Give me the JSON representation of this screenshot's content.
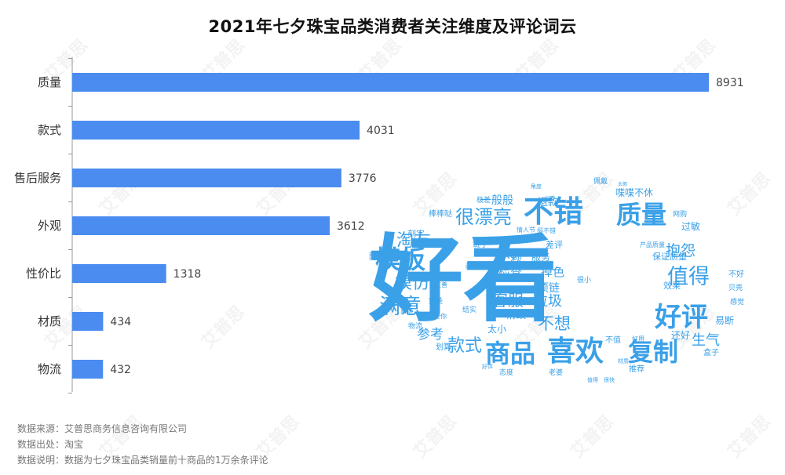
{
  "watermark_text": "艾普思",
  "chart_data": {
    "type": "bar",
    "orientation": "horizontal",
    "title": "2021年七夕珠宝品类消费者关注维度及评论词云",
    "categories": [
      "质量",
      "款式",
      "售后服务",
      "外观",
      "性价比",
      "材质",
      "物流"
    ],
    "values": [
      8931,
      4031,
      3776,
      3612,
      1318,
      434,
      432
    ],
    "xlim": [
      0,
      9500
    ],
    "bar_color": "#4a8cf0",
    "grid": false,
    "legend": "none"
  },
  "word_cloud": {
    "color": "#3aa0e8",
    "words": [
      {
        "text": "好看",
        "weight": 100
      },
      {
        "text": "不错",
        "weight": 45
      },
      {
        "text": "质量",
        "weight": 40
      },
      {
        "text": "喜欢",
        "weight": 42
      },
      {
        "text": "商品",
        "weight": 38
      },
      {
        "text": "复制",
        "weight": 36
      },
      {
        "text": "模板",
        "weight": 36
      },
      {
        "text": "好评",
        "weight": 38
      },
      {
        "text": "值得",
        "weight": 33
      },
      {
        "text": "满意",
        "weight": 32
      },
      {
        "text": "很漂亮",
        "weight": 28
      },
      {
        "text": "模仿",
        "weight": 26
      },
      {
        "text": "淘友",
        "weight": 26
      },
      {
        "text": "款式",
        "weight": 26
      },
      {
        "text": "不想",
        "weight": 24
      },
      {
        "text": "客服",
        "weight": 22
      },
      {
        "text": "抱怨",
        "weight": 22
      },
      {
        "text": "生气",
        "weight": 21
      },
      {
        "text": "参考",
        "weight": 20
      },
      {
        "text": "垃圾",
        "weight": 19
      },
      {
        "text": "不赖",
        "weight": 17
      },
      {
        "text": "检查",
        "weight": 17
      },
      {
        "text": "掉色",
        "weight": 17
      },
      {
        "text": "项链",
        "weight": 16
      },
      {
        "text": "精致",
        "weight": 15
      },
      {
        "text": "一般般",
        "weight": 16
      },
      {
        "text": "退款",
        "weight": 15
      },
      {
        "text": "服务",
        "weight": 14
      },
      {
        "text": "差评",
        "weight": 13
      },
      {
        "text": "太小",
        "weight": 13
      },
      {
        "text": "还好",
        "weight": 13
      },
      {
        "text": "易断",
        "weight": 13
      },
      {
        "text": "效果",
        "weight": 12
      },
      {
        "text": "喋喋不休",
        "weight": 12
      },
      {
        "text": "过敏",
        "weight": 12
      },
      {
        "text": "保证质量",
        "weight": 11
      },
      {
        "text": "降价",
        "weight": 11
      },
      {
        "text": "刻字",
        "weight": 11
      },
      {
        "text": "链子",
        "weight": 10
      },
      {
        "text": "棒棒哒",
        "weight": 10
      },
      {
        "text": "推荐",
        "weight": 10
      },
      {
        "text": "盒子",
        "weight": 10
      },
      {
        "text": "不值",
        "weight": 10
      },
      {
        "text": "划算",
        "weight": 10
      },
      {
        "text": "不好",
        "weight": 10
      },
      {
        "text": "结实",
        "weight": 9
      },
      {
        "text": "完美",
        "weight": 9
      },
      {
        "text": "老婆",
        "weight": 9
      },
      {
        "text": "态度",
        "weight": 9
      },
      {
        "text": "很小",
        "weight": 9
      },
      {
        "text": "物流",
        "weight": 9
      },
      {
        "text": "极差",
        "weight": 9
      },
      {
        "text": "佩戴",
        "weight": 9
      },
      {
        "text": "网购",
        "weight": 9
      },
      {
        "text": "情人节",
        "weight": 8
      },
      {
        "text": "产品质量",
        "weight": 8
      },
      {
        "text": "贝壳",
        "weight": 8
      },
      {
        "text": "感觉",
        "weight": 8
      },
      {
        "text": "好用",
        "weight": 8
      },
      {
        "text": "很快",
        "weight": 8
      },
      {
        "text": "值得",
        "weight": 8
      },
      {
        "text": "材质",
        "weight": 8
      },
      {
        "text": "迷你",
        "weight": 8
      },
      {
        "text": "友善",
        "weight": 8
      },
      {
        "text": "商家",
        "weight": 8
      },
      {
        "text": "购物",
        "weight": 8
      },
      {
        "text": "好评",
        "weight": 8
      },
      {
        "text": "挺不错",
        "weight": 8
      },
      {
        "text": "角度",
        "weight": 7
      },
      {
        "text": "太假",
        "weight": 7
      },
      {
        "text": "好看",
        "weight": 7
      }
    ]
  },
  "source": {
    "line1": "数据来源：艾普思商务信息咨询有限公司",
    "line2": "数据出处：淘宝",
    "line3": "数据说明：数据为七夕珠宝品类销量前十商品的1万余条评论"
  }
}
